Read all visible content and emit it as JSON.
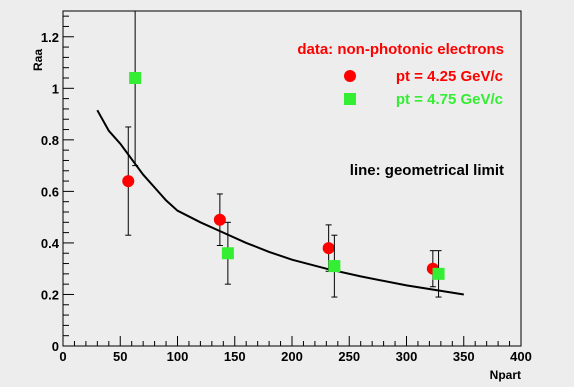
{
  "chart_data": {
    "type": "scatter",
    "xlabel": "Npart",
    "ylabel": "Raa",
    "xlim": [
      0,
      400
    ],
    "ylim": [
      0,
      1.3
    ],
    "x_ticks": [
      "0",
      "50",
      "100",
      "150",
      "200",
      "250",
      "300",
      "350",
      "400"
    ],
    "y_ticks": [
      "0",
      "0.2",
      "0.4",
      "0.6",
      "0.8",
      "1",
      "1.2"
    ],
    "grid": false,
    "legend_placement": "top-right",
    "legend_title": "data: non-photonic electrons",
    "annotation": "line: geometrical limit",
    "colors": {
      "title": "#ff0000",
      "red_series": "#ff0000",
      "green_series": "#33ee33",
      "line": "#000000",
      "background": "#ededed"
    },
    "series": [
      {
        "name": "pt = 4.25 GeV/c",
        "marker": "circle",
        "color": "#ff0000",
        "points": [
          {
            "x": 57,
            "y": 0.64,
            "err_up": 0.21,
            "err_down": 0.21
          },
          {
            "x": 137,
            "y": 0.49,
            "err_up": 0.1,
            "err_down": 0.1
          },
          {
            "x": 232,
            "y": 0.38,
            "err_up": 0.09,
            "err_down": 0.09
          },
          {
            "x": 323,
            "y": 0.3,
            "err_up": 0.07,
            "err_down": 0.07
          }
        ]
      },
      {
        "name": "pt = 4.75 GeV/c",
        "marker": "square",
        "color": "#33ee33",
        "points": [
          {
            "x": 63,
            "y": 1.04,
            "err_up": 0.3,
            "err_down": 0.34
          },
          {
            "x": 144,
            "y": 0.36,
            "err_up": 0.12,
            "err_down": 0.12
          },
          {
            "x": 237,
            "y": 0.31,
            "err_up": 0.12,
            "err_down": 0.12
          },
          {
            "x": 328,
            "y": 0.28,
            "err_up": 0.09,
            "err_down": 0.09
          }
        ]
      },
      {
        "kind": "line",
        "color": "#000000",
        "x": [
          30,
          40,
          50,
          60,
          70,
          80,
          90,
          100,
          120,
          140,
          160,
          180,
          200,
          230,
          260,
          300,
          350
        ],
        "y": [
          0.915,
          0.835,
          0.785,
          0.725,
          0.665,
          0.615,
          0.565,
          0.525,
          0.48,
          0.44,
          0.4,
          0.365,
          0.335,
          0.3,
          0.27,
          0.235,
          0.2
        ]
      }
    ]
  }
}
